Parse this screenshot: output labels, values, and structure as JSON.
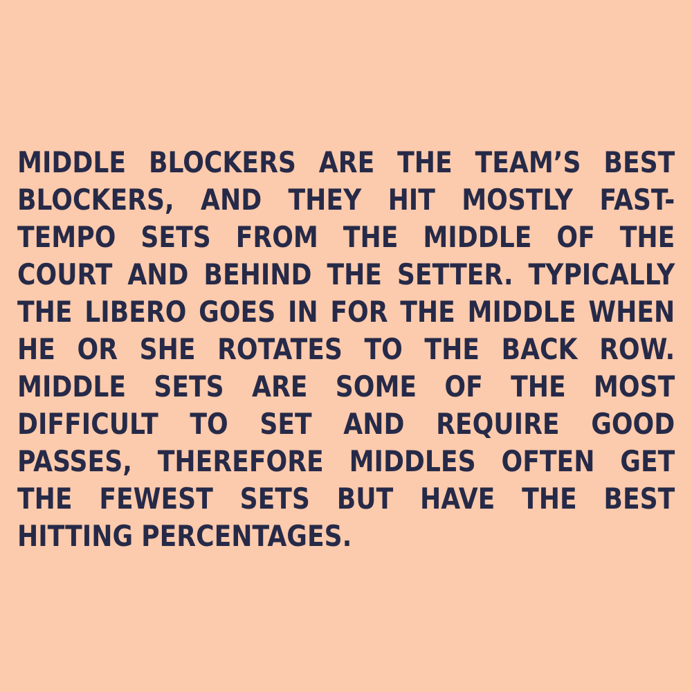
{
  "colors": {
    "background": "#fccaac",
    "text": "#262a48"
  },
  "paragraph": {
    "lines": [
      {
        "words": [
          "MIDDLE",
          "BLOCKERS",
          "ARE",
          "THE",
          "TEAM’S",
          "BEST"
        ]
      },
      {
        "words": [
          "BLOCKERS,",
          "AND",
          "THEY",
          "HIT",
          "MOSTLY",
          "FAST-"
        ]
      },
      {
        "words": [
          "TEMPO",
          "SETS",
          "FROM",
          "THE",
          "MIDDLE",
          "OF",
          "THE"
        ]
      },
      {
        "words": [
          "COURT",
          "AND",
          "BEHIND",
          "THE",
          "SETTER.",
          "TYPICALLY"
        ]
      },
      {
        "words": [
          "THE",
          "LIBERO",
          "GOES",
          "IN",
          "FOR",
          "THE",
          "MIDDLE",
          "WHEN"
        ]
      },
      {
        "words": [
          "HE",
          "OR",
          "SHE",
          "ROTATES",
          "TO",
          "THE",
          "BACK",
          "ROW."
        ]
      },
      {
        "words": [
          "MIDDLE",
          "SETS",
          "ARE",
          "SOME",
          "OF",
          "THE",
          "MOST"
        ]
      },
      {
        "words": [
          "DIFFICULT",
          "TO",
          "SET",
          "AND",
          "REQUIRE",
          "GOOD"
        ]
      },
      {
        "words": [
          "PASSES,",
          "THEREFORE",
          "MIDDLES",
          "OFTEN",
          "GET"
        ]
      },
      {
        "words": [
          "THE",
          "FEWEST",
          "SETS",
          "BUT",
          "HAVE",
          "THE",
          "BEST"
        ]
      },
      {
        "words": [
          "HITTING",
          "PERCENTAGES."
        ]
      }
    ]
  }
}
